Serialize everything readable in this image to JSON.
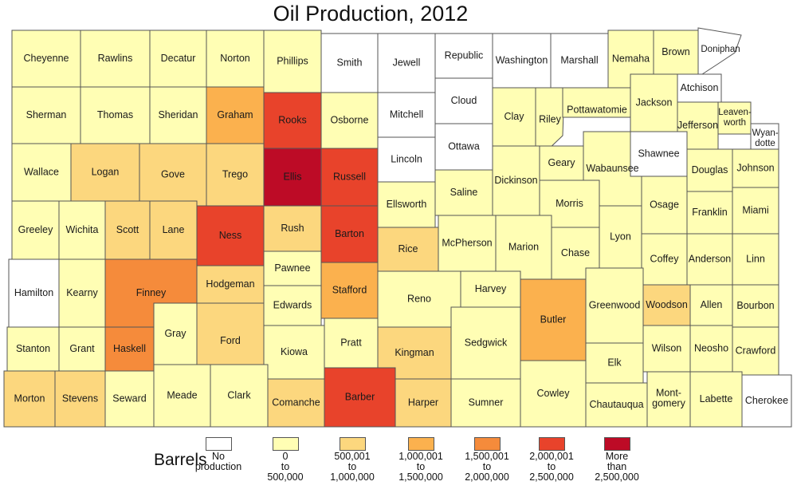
{
  "title": "Oil Production, 2012",
  "legend": {
    "title": "Barrels",
    "items": [
      {
        "lines": [
          "No",
          "production"
        ],
        "color": "#ffffff"
      },
      {
        "lines": [
          "0",
          "to",
          "500,000"
        ],
        "color": "#fffeb4"
      },
      {
        "lines": [
          "500,001",
          "to",
          "1,000,000"
        ],
        "color": "#fcd77e"
      },
      {
        "lines": [
          "1,000,001",
          "to",
          "1,500,000"
        ],
        "color": "#fbb14e"
      },
      {
        "lines": [
          "1,500,001",
          "to",
          "2,000,000"
        ],
        "color": "#f58b3b"
      },
      {
        "lines": [
          "2,000,001",
          "to",
          "2,500,000"
        ],
        "color": "#e8432b"
      },
      {
        "lines": [
          "More",
          "than",
          "2,500,000"
        ],
        "color": "#bd0b26"
      }
    ]
  },
  "counties": [
    {
      "name": "Cheyenne",
      "cls": 1
    },
    {
      "name": "Rawlins",
      "cls": 1
    },
    {
      "name": "Decatur",
      "cls": 1
    },
    {
      "name": "Norton",
      "cls": 1
    },
    {
      "name": "Phillips",
      "cls": 1
    },
    {
      "name": "Smith",
      "cls": 0
    },
    {
      "name": "Jewell",
      "cls": 0
    },
    {
      "name": "Republic",
      "cls": 0
    },
    {
      "name": "Washington",
      "cls": 0
    },
    {
      "name": "Marshall",
      "cls": 0
    },
    {
      "name": "Nemaha",
      "cls": 1
    },
    {
      "name": "Brown",
      "cls": 1
    },
    {
      "name": "Doniphan",
      "cls": 0
    },
    {
      "name": "Sherman",
      "cls": 1
    },
    {
      "name": "Thomas",
      "cls": 1
    },
    {
      "name": "Sheridan",
      "cls": 1
    },
    {
      "name": "Graham",
      "cls": 3
    },
    {
      "name": "Rooks",
      "cls": 5
    },
    {
      "name": "Osborne",
      "cls": 1
    },
    {
      "name": "Mitchell",
      "cls": 0
    },
    {
      "name": "Cloud",
      "cls": 0
    },
    {
      "name": "Clay",
      "cls": 1
    },
    {
      "name": "Riley",
      "cls": 1
    },
    {
      "name": "Pottawatomie",
      "cls": 1
    },
    {
      "name": "Jackson",
      "cls": 1
    },
    {
      "name": "Atchison",
      "cls": 0
    },
    {
      "name": "Jefferson",
      "cls": 1
    },
    {
      "name": "Leaven-worth",
      "cls": 1
    },
    {
      "name": "Wyan-dotte",
      "cls": 0
    },
    {
      "name": "Wallace",
      "cls": 1
    },
    {
      "name": "Logan",
      "cls": 2
    },
    {
      "name": "Gove",
      "cls": 2
    },
    {
      "name": "Trego",
      "cls": 2
    },
    {
      "name": "Ellis",
      "cls": 6
    },
    {
      "name": "Russell",
      "cls": 5
    },
    {
      "name": "Lincoln",
      "cls": 0
    },
    {
      "name": "Ottawa",
      "cls": 0
    },
    {
      "name": "Dickinson",
      "cls": 1
    },
    {
      "name": "Geary",
      "cls": 1
    },
    {
      "name": "Wabaunsee",
      "cls": 1
    },
    {
      "name": "Shawnee",
      "cls": 0
    },
    {
      "name": "Douglas",
      "cls": 1
    },
    {
      "name": "Johnson",
      "cls": 1
    },
    {
      "name": "Greeley",
      "cls": 1
    },
    {
      "name": "Wichita",
      "cls": 1
    },
    {
      "name": "Scott",
      "cls": 2
    },
    {
      "name": "Lane",
      "cls": 2
    },
    {
      "name": "Ness",
      "cls": 5
    },
    {
      "name": "Rush",
      "cls": 2
    },
    {
      "name": "Barton",
      "cls": 5
    },
    {
      "name": "Ellsworth",
      "cls": 1
    },
    {
      "name": "Saline",
      "cls": 1
    },
    {
      "name": "Morris",
      "cls": 1
    },
    {
      "name": "Osage",
      "cls": 1
    },
    {
      "name": "Franklin",
      "cls": 1
    },
    {
      "name": "Miami",
      "cls": 1
    },
    {
      "name": "Hamilton",
      "cls": 0
    },
    {
      "name": "Kearny",
      "cls": 1
    },
    {
      "name": "Finney",
      "cls": 4
    },
    {
      "name": "Hodgeman",
      "cls": 2
    },
    {
      "name": "Pawnee",
      "cls": 1
    },
    {
      "name": "Stafford",
      "cls": 3
    },
    {
      "name": "Rice",
      "cls": 2
    },
    {
      "name": "McPherson",
      "cls": 1
    },
    {
      "name": "Marion",
      "cls": 1
    },
    {
      "name": "Chase",
      "cls": 1
    },
    {
      "name": "Lyon",
      "cls": 1
    },
    {
      "name": "Coffey",
      "cls": 1
    },
    {
      "name": "Anderson",
      "cls": 1
    },
    {
      "name": "Linn",
      "cls": 1
    },
    {
      "name": "Edwards",
      "cls": 1
    },
    {
      "name": "Reno",
      "cls": 1
    },
    {
      "name": "Harvey",
      "cls": 1
    },
    {
      "name": "Butler",
      "cls": 3
    },
    {
      "name": "Greenwood",
      "cls": 1
    },
    {
      "name": "Woodson",
      "cls": 2
    },
    {
      "name": "Allen",
      "cls": 1
    },
    {
      "name": "Bourbon",
      "cls": 1
    },
    {
      "name": "Stanton",
      "cls": 1
    },
    {
      "name": "Grant",
      "cls": 1
    },
    {
      "name": "Haskell",
      "cls": 4
    },
    {
      "name": "Gray",
      "cls": 1
    },
    {
      "name": "Ford",
      "cls": 2
    },
    {
      "name": "Kiowa",
      "cls": 1
    },
    {
      "name": "Pratt",
      "cls": 1
    },
    {
      "name": "Kingman",
      "cls": 2
    },
    {
      "name": "Sedgwick",
      "cls": 1
    },
    {
      "name": "Elk",
      "cls": 1
    },
    {
      "name": "Wilson",
      "cls": 1
    },
    {
      "name": "Neosho",
      "cls": 1
    },
    {
      "name": "Crawford",
      "cls": 1
    },
    {
      "name": "Morton",
      "cls": 2
    },
    {
      "name": "Stevens",
      "cls": 2
    },
    {
      "name": "Seward",
      "cls": 1
    },
    {
      "name": "Meade",
      "cls": 1
    },
    {
      "name": "Clark",
      "cls": 1
    },
    {
      "name": "Comanche",
      "cls": 2
    },
    {
      "name": "Barber",
      "cls": 5
    },
    {
      "name": "Harper",
      "cls": 2
    },
    {
      "name": "Sumner",
      "cls": 1
    },
    {
      "name": "Cowley",
      "cls": 1
    },
    {
      "name": "Chautauqua",
      "cls": 1
    },
    {
      "name": "Mont-gomery",
      "cls": 1
    },
    {
      "name": "Labette",
      "cls": 1
    },
    {
      "name": "Cherokee",
      "cls": 0
    }
  ]
}
